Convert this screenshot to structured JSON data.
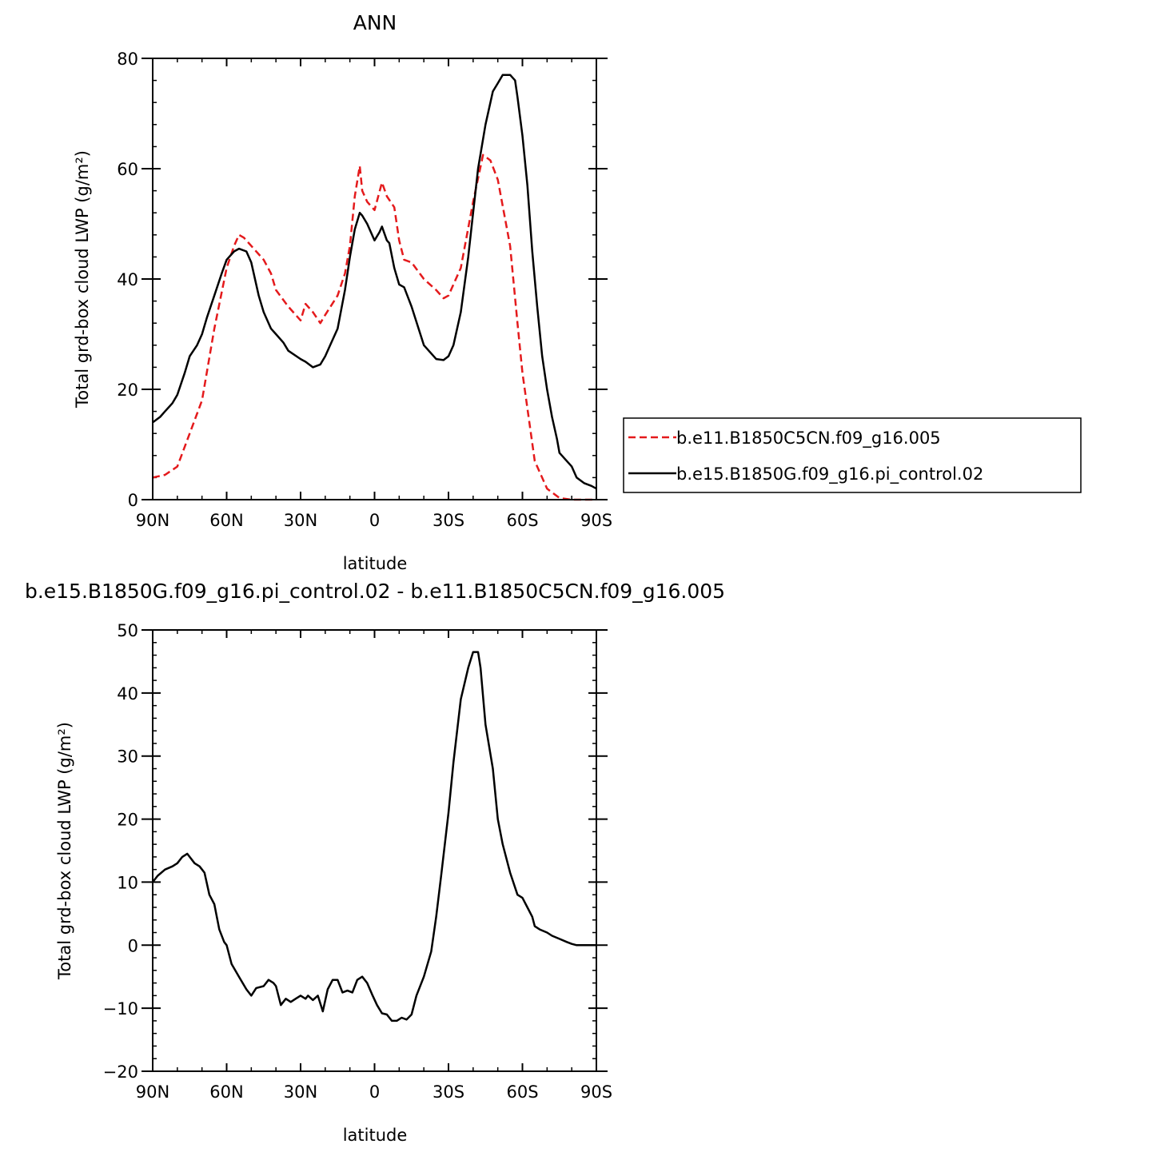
{
  "chart_data": [
    {
      "type": "line",
      "title": "ANN",
      "xlabel": "latitude",
      "ylabel": "Total grd-box cloud LWP (g/m²)",
      "xlim": [
        -90,
        90
      ],
      "ylim": [
        0,
        80
      ],
      "x_tick_values": [
        -90,
        -60,
        -30,
        0,
        30,
        60,
        90
      ],
      "x_tick_labels": [
        "90N",
        "60N",
        "30N",
        "0",
        "30S",
        "60S",
        "90S"
      ],
      "y_tick_values": [
        0,
        20,
        40,
        60,
        80
      ],
      "y_tick_labels": [
        "0",
        "20",
        "40",
        "60",
        "80"
      ],
      "legend": "right",
      "series": [
        {
          "name": "b.e11.B1850C5CN.f09_g16.005",
          "color": "#e41a1c",
          "dash": "dashed",
          "x": [
            -90,
            -85,
            -80,
            -75,
            -70,
            -65,
            -60,
            -57,
            -55,
            -53,
            -50,
            -45,
            -42,
            -40,
            -35,
            -30,
            -28,
            -25,
            -22,
            -20,
            -15,
            -12,
            -10,
            -8,
            -6,
            -5,
            -3,
            0,
            3,
            5,
            8,
            10,
            12,
            15,
            20,
            25,
            28,
            30,
            35,
            40,
            44,
            47,
            50,
            55,
            58,
            60,
            65,
            70,
            75,
            80,
            85,
            90
          ],
          "y": [
            4,
            4.5,
            6,
            12,
            18,
            31,
            42,
            46,
            48,
            47.5,
            46,
            43.5,
            41,
            38,
            35,
            32.5,
            35.5,
            34,
            32,
            33.5,
            37,
            41,
            46,
            55,
            60.5,
            56,
            54,
            52.5,
            57.5,
            55,
            53,
            47,
            43.5,
            43,
            40,
            38,
            36.5,
            37,
            42,
            54,
            62.5,
            61.5,
            58,
            46,
            32,
            23,
            7,
            2,
            0.3,
            0,
            0,
            0
          ]
        },
        {
          "name": "b.e15.B1850G.f09_g16.pi_control.02",
          "color": "#000000",
          "dash": "solid",
          "x": [
            -90,
            -87,
            -85,
            -82,
            -80,
            -77,
            -75,
            -72,
            -70,
            -68,
            -65,
            -62,
            -60,
            -57,
            -55,
            -52,
            -50,
            -47,
            -45,
            -42,
            -40,
            -37,
            -35,
            -30,
            -28,
            -25,
            -22,
            -20,
            -18,
            -15,
            -12,
            -10,
            -8,
            -6,
            -5,
            -3,
            -1,
            0,
            2,
            3,
            5,
            6,
            8,
            10,
            12,
            15,
            20,
            25,
            28,
            30,
            32,
            35,
            38,
            40,
            42,
            45,
            48,
            50,
            52,
            55,
            57,
            58,
            60,
            62,
            64,
            66,
            68,
            70,
            72,
            74,
            75,
            78,
            80,
            82,
            85,
            88,
            90
          ],
          "y": [
            14,
            15,
            16,
            17.5,
            19,
            23,
            26,
            28,
            30,
            33,
            37,
            41,
            43.5,
            45,
            45.5,
            45,
            43,
            37,
            34,
            31,
            30,
            28.5,
            27,
            25.5,
            25,
            24,
            24.5,
            26,
            28,
            31,
            38,
            44,
            49,
            52,
            51.5,
            50,
            48,
            47,
            48.5,
            49.5,
            47,
            46.5,
            42,
            39,
            38.5,
            35,
            28,
            25.5,
            25.3,
            26,
            28,
            34,
            44,
            52,
            60,
            68,
            74,
            75.5,
            77,
            77,
            76,
            73,
            66,
            57,
            45,
            35,
            26,
            20,
            15,
            11,
            8.5,
            7,
            6,
            4,
            3,
            2.5,
            2
          ]
        }
      ]
    },
    {
      "type": "line",
      "title": "b.e15.B1850G.f09_g16.pi_control.02 - b.e11.B1850C5CN.f09_g16.005",
      "xlabel": "latitude",
      "ylabel": "Total grd-box cloud LWP (g/m²)",
      "xlim": [
        -90,
        90
      ],
      "ylim": [
        -20,
        50
      ],
      "x_tick_values": [
        -90,
        -60,
        -30,
        0,
        30,
        60,
        90
      ],
      "x_tick_labels": [
        "90N",
        "60N",
        "30N",
        "0",
        "30S",
        "60S",
        "90S"
      ],
      "y_tick_values": [
        -20,
        -10,
        0,
        10,
        20,
        30,
        40,
        50
      ],
      "y_tick_labels": [
        "−20",
        "−10",
        "0",
        "10",
        "20",
        "30",
        "40",
        "50"
      ],
      "legend": "none",
      "series": [
        {
          "color": "#000000",
          "dash": "solid",
          "x": [
            -90,
            -88,
            -85,
            -82,
            -80,
            -78,
            -76,
            -75,
            -73,
            -71,
            -69,
            -67,
            -65,
            -63,
            -61,
            -60,
            -58,
            -55,
            -52,
            -50,
            -48,
            -45,
            -43,
            -41,
            -40,
            -38,
            -36,
            -34,
            -32,
            -30,
            -28,
            -27,
            -25,
            -23,
            -21,
            -19,
            -17,
            -15,
            -13,
            -11,
            -9,
            -7,
            -5,
            -3,
            -1,
            1,
            3,
            5,
            7,
            9,
            11,
            13,
            15,
            17,
            20,
            23,
            25,
            27,
            30,
            32,
            35,
            38,
            40,
            42,
            43,
            45,
            48,
            50,
            52,
            55,
            58,
            60,
            62,
            64,
            65,
            67,
            70,
            72,
            75,
            78,
            80,
            82,
            85,
            88,
            90
          ],
          "y": [
            10,
            11,
            12,
            12.5,
            13,
            14,
            14.5,
            14,
            13,
            12.5,
            11.5,
            8,
            6.5,
            2.5,
            0.5,
            0,
            -3,
            -5,
            -7,
            -8,
            -6.8,
            -6.5,
            -5.5,
            -6,
            -6.5,
            -9.5,
            -8.5,
            -9,
            -8.5,
            -8,
            -8.5,
            -8,
            -8.7,
            -8,
            -10.5,
            -7,
            -5.5,
            -5.5,
            -7.5,
            -7.2,
            -7.5,
            -5.5,
            -5,
            -6,
            -7.8,
            -9.5,
            -10.8,
            -11,
            -12,
            -12,
            -11.5,
            -11.8,
            -11,
            -8,
            -5,
            -1,
            4.5,
            11,
            21,
            29,
            39,
            44,
            46.5,
            46.5,
            44,
            35,
            28,
            20,
            16,
            11.5,
            8,
            7.5,
            6,
            4.5,
            3,
            2.5,
            2,
            1.5,
            1,
            0.5,
            0.2,
            0,
            0,
            0,
            0
          ]
        }
      ]
    }
  ]
}
